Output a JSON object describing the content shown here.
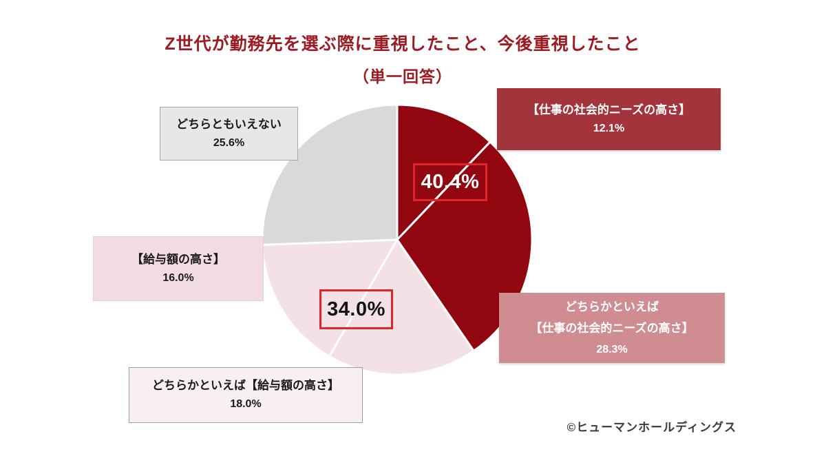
{
  "title": {
    "line1": "Z世代が勤務先を選ぶ際に重視したこと、今後重視したこと",
    "line2": "（単一回答）"
  },
  "credit": "©ヒューマンホールディングス",
  "colors": {
    "dark_red_slice": "#92060F",
    "pink_slice": "#F4E1E5",
    "gray_slice": "#D9D9D9",
    "title_red": "#9C1B22",
    "social_box_bg": "#A4343C",
    "rather_social_box_bg": "#CF8D91",
    "callout_border_red": "#E1262B"
  },
  "labels": {
    "neither": {
      "text": "どちらともいえない",
      "pct": "25.6%"
    },
    "social": {
      "text": "【仕事の社会的ニーズの高さ】",
      "pct": "12.1%"
    },
    "salary": {
      "text": "【給与額の高さ】",
      "pct": "16.0%"
    },
    "rather_salary": {
      "text": "どちらかといえば【給与額の高さ】",
      "pct": "18.0%"
    },
    "rather_social": {
      "line1": "どちらかといえば",
      "line2": "【仕事の社会的ニーズの高さ】",
      "pct": "28.3%"
    }
  },
  "callouts": {
    "social_total": "40.4%",
    "salary_total": "34.0%"
  },
  "chart_data": {
    "type": "pie",
    "title": "Z世代が勤務先を選ぶ際に重視したこと、今後重視したこと（単一回答）",
    "start_angle_deg": 0,
    "direction": "clockwise",
    "slices": [
      {
        "label": "【仕事の社会的ニーズの高さ】",
        "value": 12.1,
        "color": "#92060F"
      },
      {
        "label": "どちらかといえば【仕事の社会的ニーズの高さ】",
        "value": 28.3,
        "color": "#92060F"
      },
      {
        "label": "どちらかといえば【給与額の高さ】",
        "value": 18.0,
        "color": "#F4E1E5"
      },
      {
        "label": "【給与額の高さ】",
        "value": 16.0,
        "color": "#F4E1E5"
      },
      {
        "label": "どちらともいえない",
        "value": 25.6,
        "color": "#D9D9D9"
      }
    ],
    "group_totals": [
      {
        "label": "【仕事の社会的ニーズの高さ】合計",
        "value": 40.4
      },
      {
        "label": "【給与額の高さ】合計",
        "value": 34.0
      }
    ],
    "separator_color": "#FFFFFF",
    "legend_position": "none"
  }
}
